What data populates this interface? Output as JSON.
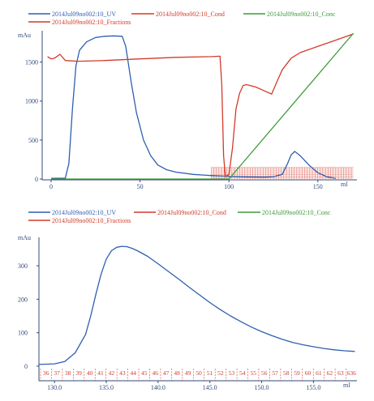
{
  "colors": {
    "uv": "#2f5fb0",
    "cond": "#d23a2a",
    "conc": "#3f9a3a",
    "fractions": "#d23a2a",
    "axis": "#334a7a",
    "background": "#ffffff"
  },
  "legend": {
    "uv": "2014Jul09no002:10_UV",
    "cond": "2014Jul09no002:10_Cond",
    "conc": "2014Jul09no002:10_Conc",
    "fractions": "2014Jul09no002:10_Fractions"
  },
  "chart_data": [
    {
      "type": "line",
      "title": "",
      "xlabel": "ml",
      "ylabel": "mAu",
      "xlim": [
        -5,
        172
      ],
      "ylim": [
        -10,
        1880
      ],
      "x_ticks": [
        0,
        50,
        100,
        150
      ],
      "x_tick_labels": [
        "0",
        "50",
        "100",
        "150"
      ],
      "y_ticks": [
        0,
        500,
        1000,
        1500
      ],
      "y_tick_labels": [
        "0",
        "500",
        "1000",
        "1500"
      ],
      "grid": false,
      "legend_position": "top",
      "series": [
        {
          "name": "2014Jul09no002:10_UV",
          "x": [
            0,
            8,
            10,
            12,
            14,
            16,
            20,
            25,
            30,
            35,
            40,
            42,
            45,
            48,
            52,
            56,
            60,
            65,
            70,
            80,
            90,
            100,
            110,
            120,
            125,
            130,
            133,
            135,
            137,
            140,
            145,
            150,
            155,
            160
          ],
          "y": [
            10,
            12,
            200,
            900,
            1450,
            1650,
            1760,
            1815,
            1830,
            1835,
            1830,
            1700,
            1250,
            850,
            500,
            300,
            180,
            120,
            90,
            60,
            45,
            35,
            28,
            25,
            30,
            60,
            200,
            310,
            355,
            300,
            180,
            80,
            30,
            10
          ]
        },
        {
          "name": "2014Jul09no002:10_Cond",
          "x": [
            -2,
            0,
            2,
            5,
            8,
            15,
            30,
            50,
            70,
            90,
            95,
            96,
            97,
            98,
            100,
            102,
            104,
            106,
            108,
            110,
            115,
            120,
            124,
            127,
            130,
            135,
            140,
            150,
            160,
            170
          ],
          "y": [
            1570,
            1540,
            1550,
            1600,
            1520,
            1510,
            1520,
            1540,
            1560,
            1570,
            1575,
            1200,
            300,
            30,
            60,
            400,
            900,
            1100,
            1200,
            1210,
            1180,
            1130,
            1090,
            1250,
            1400,
            1550,
            1620,
            1700,
            1780,
            1860
          ]
        },
        {
          "name": "2014Jul09no002:10_Conc",
          "x": [
            0,
            100,
            170
          ],
          "y": [
            0,
            0,
            1870
          ]
        }
      ],
      "fractions": {
        "name": "2014Jul09no002:10_Fractions",
        "start": 90,
        "end": 170,
        "band_y": [
          0,
          150
        ]
      }
    },
    {
      "type": "line",
      "title": "",
      "xlabel": "ml",
      "ylabel": "mAu",
      "xlim": [
        128.5,
        159.2
      ],
      "ylim": [
        0,
        380
      ],
      "x_ticks": [
        130,
        135,
        140,
        145,
        150,
        155
      ],
      "x_tick_labels": [
        "130.0",
        "135.0",
        "140.0",
        "145.0",
        "150.0",
        "155.0"
      ],
      "y_ticks": [
        0,
        100,
        200,
        300
      ],
      "y_tick_labels": [
        "0",
        "100",
        "200",
        "300"
      ],
      "grid": false,
      "legend_position": "top",
      "series": [
        {
          "name": "2014Jul09no002:10_UV",
          "x": [
            128.5,
            130,
            131,
            132,
            133,
            133.5,
            134,
            134.5,
            135,
            135.5,
            136,
            136.5,
            137,
            137.5,
            138,
            139,
            140,
            141,
            142,
            143,
            144,
            145,
            146,
            147,
            148,
            149,
            150,
            151,
            152,
            153,
            154,
            155,
            156,
            157,
            158,
            159
          ],
          "y": [
            5,
            7,
            14,
            40,
            95,
            150,
            215,
            275,
            320,
            345,
            355,
            358,
            357,
            352,
            345,
            328,
            306,
            283,
            260,
            236,
            213,
            190,
            169,
            150,
            133,
            117,
            103,
            91,
            80,
            71,
            64,
            58,
            53,
            49,
            46,
            44
          ]
        }
      ],
      "fraction_labels": [
        "36",
        "37",
        "38",
        "39",
        "40",
        "41",
        "42",
        "43",
        "44",
        "45",
        "46",
        "47",
        "48",
        "49",
        "50",
        "51",
        "52",
        "53",
        "54",
        "55",
        "56",
        "57",
        "58",
        "59",
        "60",
        "61",
        "62",
        "63",
        "636"
      ]
    }
  ]
}
